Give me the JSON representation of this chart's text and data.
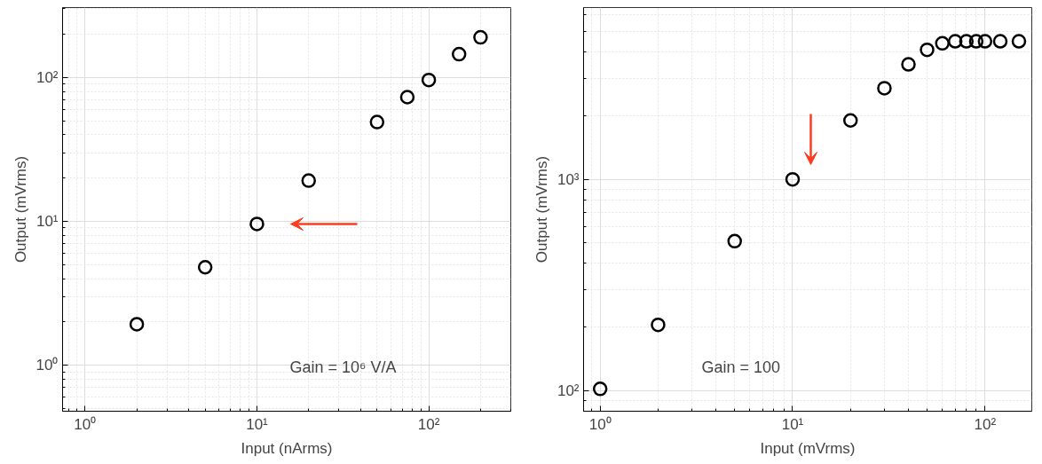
{
  "chart_data": [
    {
      "type": "scatter",
      "xlabel": "Input (nArms)",
      "ylabel": "Output (mVrms)",
      "log": "xy",
      "grid": true,
      "marker": "circle",
      "x": [
        2,
        5,
        10,
        20,
        50,
        75,
        100,
        150,
        200
      ],
      "series": [
        {
          "color": "#000000",
          "values": [
            1.93,
            4.8,
            9.6,
            19.2,
            49,
            73,
            96,
            145,
            190
          ]
        }
      ],
      "xlim": [
        0.74,
        300
      ],
      "ylim": [
        0.48,
        306
      ],
      "xticks": [
        {
          "value": 1,
          "label": "10⁰"
        },
        {
          "value": 10,
          "label": "10¹"
        },
        {
          "value": 100,
          "label": "10²"
        }
      ],
      "yticks": [
        {
          "value": 1,
          "label": "10⁰"
        },
        {
          "value": 10,
          "label": "10¹"
        },
        {
          "value": 100,
          "label": "10²"
        }
      ],
      "annotations": [
        "Gain = 10⁶ V/A"
      ]
    },
    {
      "type": "scatter",
      "xlabel": "Input (mVrms)",
      "ylabel": "Output (mVrms)",
      "log": "xy",
      "grid": true,
      "marker": "circle",
      "x": [
        1,
        2,
        5,
        10,
        20,
        30,
        40,
        50,
        60,
        70,
        80,
        90,
        100,
        120,
        150
      ],
      "series": [
        {
          "color": "#000000",
          "values": [
            102,
            205,
            510,
            1000,
            1900,
            2700,
            3500,
            4100,
            4400,
            4500,
            4500,
            4500,
            4500,
            4500,
            4500
          ]
        }
      ],
      "xlim": [
        0.82,
        175
      ],
      "ylim": [
        80,
        6500
      ],
      "xticks": [
        {
          "value": 1,
          "label": "10⁰"
        },
        {
          "value": 10,
          "label": "10¹"
        },
        {
          "value": 100,
          "label": "10²"
        }
      ],
      "yticks": [
        {
          "value": 100,
          "label": "10²"
        },
        {
          "value": 1000,
          "label": "10³"
        }
      ],
      "annotations": [
        "Gain = 100"
      ]
    }
  ]
}
